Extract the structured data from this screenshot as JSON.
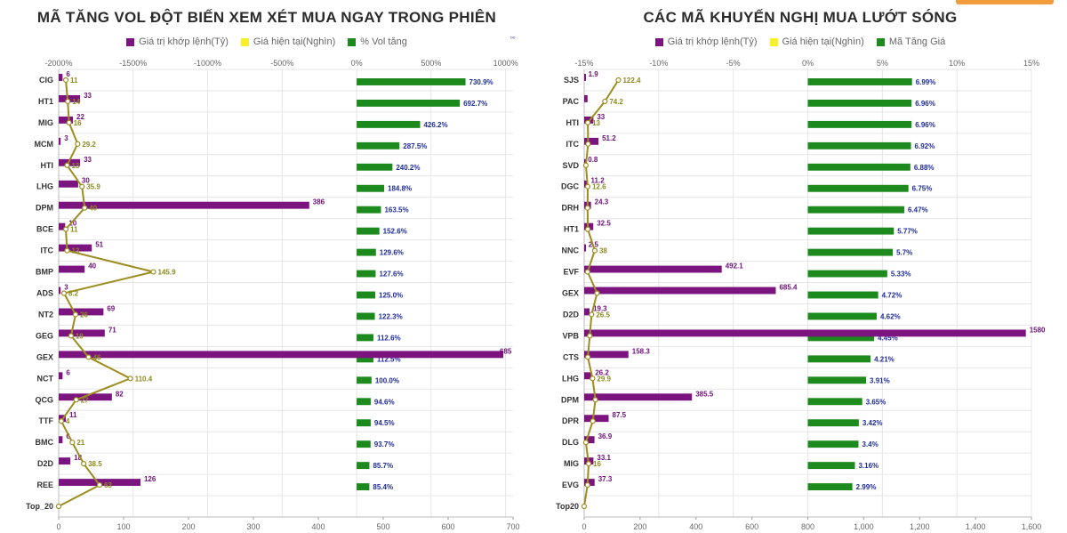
{
  "colors": {
    "purple": "#7b147f",
    "yellow": "#f7ef2a",
    "green": "#1d8a1d",
    "line": "#9d8d1f",
    "grid": "#e6e6e6"
  },
  "decor": {
    "small_mark": "⁰⁰"
  },
  "chart_data": [
    {
      "type": "bar",
      "title": "MÃ TĂNG VOL ĐỘT BIẾN XEM XÉT MUA NGAY TRONG PHIÊN",
      "legend": [
        "Giá trị khớp lệnh(Tỷ)",
        "Giá hiện tại(Nghìn)",
        "% Vol tăng"
      ],
      "categories": [
        "CIG",
        "HT1",
        "MIG",
        "MCM",
        "HTI",
        "LHG",
        "DPM",
        "BCE",
        "ITC",
        "BMP",
        "ADS",
        "NT2",
        "GEG",
        "GEX",
        "NCT",
        "QCG",
        "TTF",
        "BMC",
        "D2D",
        "REE",
        "Top_20"
      ],
      "match_value": [
        6,
        33,
        22,
        3,
        33,
        30,
        386,
        10,
        51,
        40,
        3,
        69,
        71,
        685,
        6,
        82,
        11,
        6,
        18,
        126,
        null
      ],
      "match_label": [
        "6",
        "33",
        "22",
        "3",
        "33",
        "30",
        "386",
        "10",
        "51",
        "40",
        "3",
        "69",
        "71",
        "685",
        "6",
        "82",
        "11",
        "6",
        "18",
        "126",
        ""
      ],
      "price": [
        11,
        14,
        16,
        29.2,
        13,
        35.9,
        40,
        11,
        13,
        145.9,
        8.2,
        26,
        19,
        46,
        110.4,
        27,
        4,
        21,
        38.5,
        63,
        0
      ],
      "price_label": [
        "11",
        "14",
        "16",
        "29.2",
        "13",
        "35.9",
        "40",
        "11",
        "13",
        "145.9",
        "8.2",
        "26",
        "19",
        "46",
        "110.4",
        "27",
        "4",
        "21",
        "38.5",
        "63",
        ""
      ],
      "pct": [
        730.9,
        692.7,
        426.2,
        287.5,
        240.2,
        184.8,
        163.5,
        152.6,
        129.6,
        127.6,
        125.0,
        122.3,
        112.6,
        112.5,
        100.0,
        94.6,
        94.5,
        93.7,
        85.7,
        85.4,
        null
      ],
      "pct_label": [
        "730.9%",
        "692.7%",
        "426.2%",
        "287.5%",
        "240.2%",
        "184.8%",
        "163.5%",
        "152.6%",
        "129.6%",
        "127.6%",
        "125.0%",
        "122.3%",
        "112.6%",
        "112.5%",
        "100.0%",
        "94.6%",
        "94.5%",
        "93.7%",
        "85.7%",
        "85.4%",
        ""
      ],
      "top_ticks": [
        "-2000%",
        "-1500%",
        "-1000%",
        "-500%",
        "0%",
        "500%",
        "1000%"
      ],
      "top_range": [
        -2000,
        1050
      ],
      "bottom_ticks": [
        "0",
        "100",
        "200",
        "300",
        "400",
        "500",
        "600",
        "700"
      ],
      "bottom_range": [
        0,
        700
      ]
    },
    {
      "type": "bar",
      "title": "CÁC MÃ KHUYẾN NGHỊ MUA LƯỚT SÓNG",
      "legend": [
        "Giá trị khớp lệnh(Tỷ)",
        "Giá hiện tại(Nghìn)",
        "Mã Tăng Giá"
      ],
      "categories": [
        "SJS",
        "PAC",
        "HTI",
        "ITC",
        "SVD",
        "DGC",
        "DRH",
        "HT1",
        "NNC",
        "EVF",
        "GEX",
        "D2D",
        "VPB",
        "CTS",
        "LHG",
        "DPM",
        "DPR",
        "DLG",
        "MIG",
        "EVG",
        "Top20"
      ],
      "match_value": [
        1.9,
        12,
        33,
        51.2,
        0.8,
        11.2,
        24.3,
        32.5,
        2.5,
        492.1,
        685.4,
        19.3,
        1580,
        158.3,
        26.2,
        385.5,
        87.5,
        36.9,
        33.1,
        37.3,
        null
      ],
      "match_label": [
        "1.9",
        "",
        "33",
        "51.2",
        "0.8",
        "11.2",
        "24.3",
        "32.5",
        "2.5",
        "492.1",
        "685.4",
        "19.3",
        "1580",
        "158.3",
        "26.2",
        "385.5",
        "87.5",
        "36.9",
        "33.1",
        "37.3",
        ""
      ],
      "price": [
        122.4,
        74.2,
        13,
        14,
        6,
        12.6,
        12,
        13,
        38,
        12,
        46,
        26.5,
        20,
        13,
        29.9,
        40,
        31,
        6,
        16,
        12,
        0
      ],
      "price_label": [
        "122.4",
        "74.2",
        "13",
        "",
        "",
        "12.6",
        "",
        "",
        "38",
        "",
        "",
        "26.5",
        "",
        "",
        "29.9",
        "",
        "",
        "",
        "16",
        "",
        ""
      ],
      "pct": [
        6.99,
        6.96,
        6.96,
        6.92,
        6.88,
        6.75,
        6.47,
        5.77,
        5.7,
        5.33,
        4.72,
        4.62,
        4.45,
        4.21,
        3.91,
        3.65,
        3.42,
        3.4,
        3.16,
        2.99,
        null
      ],
      "pct_label": [
        "6.99%",
        "6.96%",
        "6.96%",
        "6.92%",
        "6.88%",
        "6.75%",
        "6.47%",
        "5.77%",
        "5.7%",
        "5.33%",
        "4.72%",
        "4.62%",
        "4.45%",
        "4.21%",
        "3.91%",
        "3.65%",
        "3.42%",
        "3.4%",
        "3.16%",
        "2.99%",
        ""
      ],
      "top_ticks": [
        "-15%",
        "-10%",
        "-5%",
        "0%",
        "5%",
        "10%",
        "15%"
      ],
      "top_range": [
        -15,
        15
      ],
      "bottom_ticks": [
        "0",
        "200",
        "400",
        "600",
        "800",
        "1,000",
        "1,200",
        "1,400",
        "1,600"
      ],
      "bottom_range": [
        0,
        1600
      ]
    }
  ]
}
